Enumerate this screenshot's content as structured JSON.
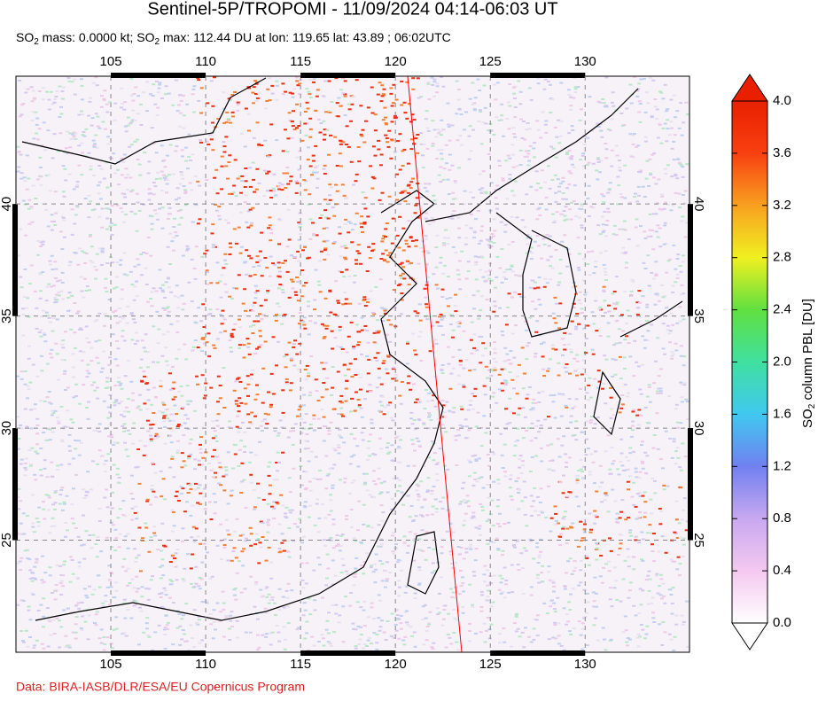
{
  "title": "Sentinel-5P/TROPOMI - 11/09/2024 04:14-06:03 UT",
  "subtitle": [
    "SO",
    "2",
    " mass: 0.0000 kt; SO",
    "2",
    " max: 112.44 DU at lon: 119.65 lat: 43.89 ; 06:02UTC"
  ],
  "map": {
    "lon_range": [
      100,
      135.5
    ],
    "lat_range": [
      20,
      45.7
    ],
    "lon_ticks": [
      105,
      110,
      115,
      120,
      125,
      130
    ],
    "lat_ticks": [
      25,
      30,
      35,
      40
    ]
  },
  "colorbar": {
    "label": [
      "SO",
      "2",
      " column PBL [DU]"
    ],
    "range": [
      0,
      4
    ],
    "ticks": [
      {
        "value": 0,
        "label": "0.0"
      },
      0.4,
      0.8,
      1.2,
      1.6,
      {
        "value": 2,
        "label": "2.0"
      },
      2.4,
      2.8,
      3.2,
      3.6,
      {
        "value": 4,
        "label": "4.0"
      }
    ],
    "colors": [
      "#ffffff",
      "#f4c8f0",
      "#c8a8f0",
      "#7080f0",
      "#40c8f0",
      "#40e0a0",
      "#60e040",
      "#f0f020",
      "#f8a020",
      "#f84010",
      "#e82000"
    ]
  },
  "credit": "Data: BIRA-IASB/DLR/ESA/EU Copernicus Program"
}
